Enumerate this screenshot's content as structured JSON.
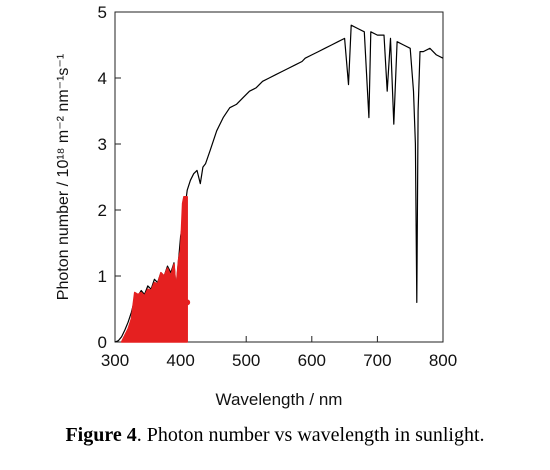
{
  "caption": {
    "label": "Figure 4",
    "text": ". Photon number vs wavelength in sunlight."
  },
  "chart_data": {
    "type": "line",
    "title": "",
    "xlabel": "Wavelength / nm",
    "ylabel": "Photon number / 10¹⁸ m⁻² nm⁻¹s⁻¹",
    "xlim": [
      300,
      800
    ],
    "ylim": [
      0,
      5
    ],
    "x_ticks": [
      300,
      400,
      500,
      600,
      700,
      800
    ],
    "y_ticks": [
      0,
      1,
      2,
      3,
      4,
      5
    ],
    "grid": false,
    "legend": "none",
    "series": [
      {
        "color": "#000000",
        "x": [
          300,
          305,
          310,
          315,
          320,
          325,
          330,
          335,
          340,
          345,
          350,
          355,
          360,
          365,
          370,
          375,
          380,
          385,
          390,
          393,
          397,
          400,
          405,
          410,
          415,
          420,
          425,
          430,
          434,
          438,
          445,
          455,
          465,
          475,
          485,
          495,
          505,
          515,
          525,
          535,
          545,
          555,
          565,
          575,
          585,
          590,
          600,
          610,
          620,
          630,
          640,
          650,
          656,
          660,
          670,
          680,
          687,
          690,
          700,
          710,
          715,
          720,
          725,
          730,
          740,
          750,
          755,
          758,
          760,
          762,
          765,
          770,
          780,
          790,
          800
        ],
        "y": [
          0.0,
          0.02,
          0.08,
          0.18,
          0.3,
          0.45,
          0.65,
          0.7,
          0.78,
          0.72,
          0.85,
          0.8,
          0.95,
          0.9,
          1.05,
          1.0,
          1.15,
          1.05,
          1.2,
          0.8,
          1.25,
          1.6,
          1.9,
          2.3,
          2.45,
          2.55,
          2.6,
          2.4,
          2.65,
          2.7,
          2.9,
          3.2,
          3.4,
          3.55,
          3.6,
          3.7,
          3.8,
          3.85,
          3.95,
          4.0,
          4.05,
          4.1,
          4.15,
          4.2,
          4.25,
          4.3,
          4.35,
          4.4,
          4.45,
          4.5,
          4.55,
          4.6,
          3.9,
          4.8,
          4.75,
          4.7,
          3.4,
          4.7,
          4.65,
          4.65,
          3.8,
          4.6,
          3.3,
          4.55,
          4.5,
          4.45,
          3.8,
          3.0,
          0.6,
          3.5,
          4.4,
          4.4,
          4.45,
          4.35,
          4.3
        ]
      },
      {
        "color": "#e52020",
        "x": [
          310,
          315,
          320,
          325,
          330,
          335,
          340,
          345,
          350,
          355,
          360,
          365,
          370,
          375,
          380,
          385,
          390,
          393,
          397,
          400,
          403,
          405,
          410
        ],
        "y": [
          0.0,
          0.1,
          0.2,
          0.35,
          0.75,
          0.72,
          0.75,
          0.7,
          0.8,
          0.78,
          0.9,
          0.88,
          1.05,
          1.0,
          1.12,
          1.0,
          1.18,
          0.8,
          1.25,
          1.4,
          2.1,
          2.2,
          2.2
        ]
      }
    ]
  }
}
